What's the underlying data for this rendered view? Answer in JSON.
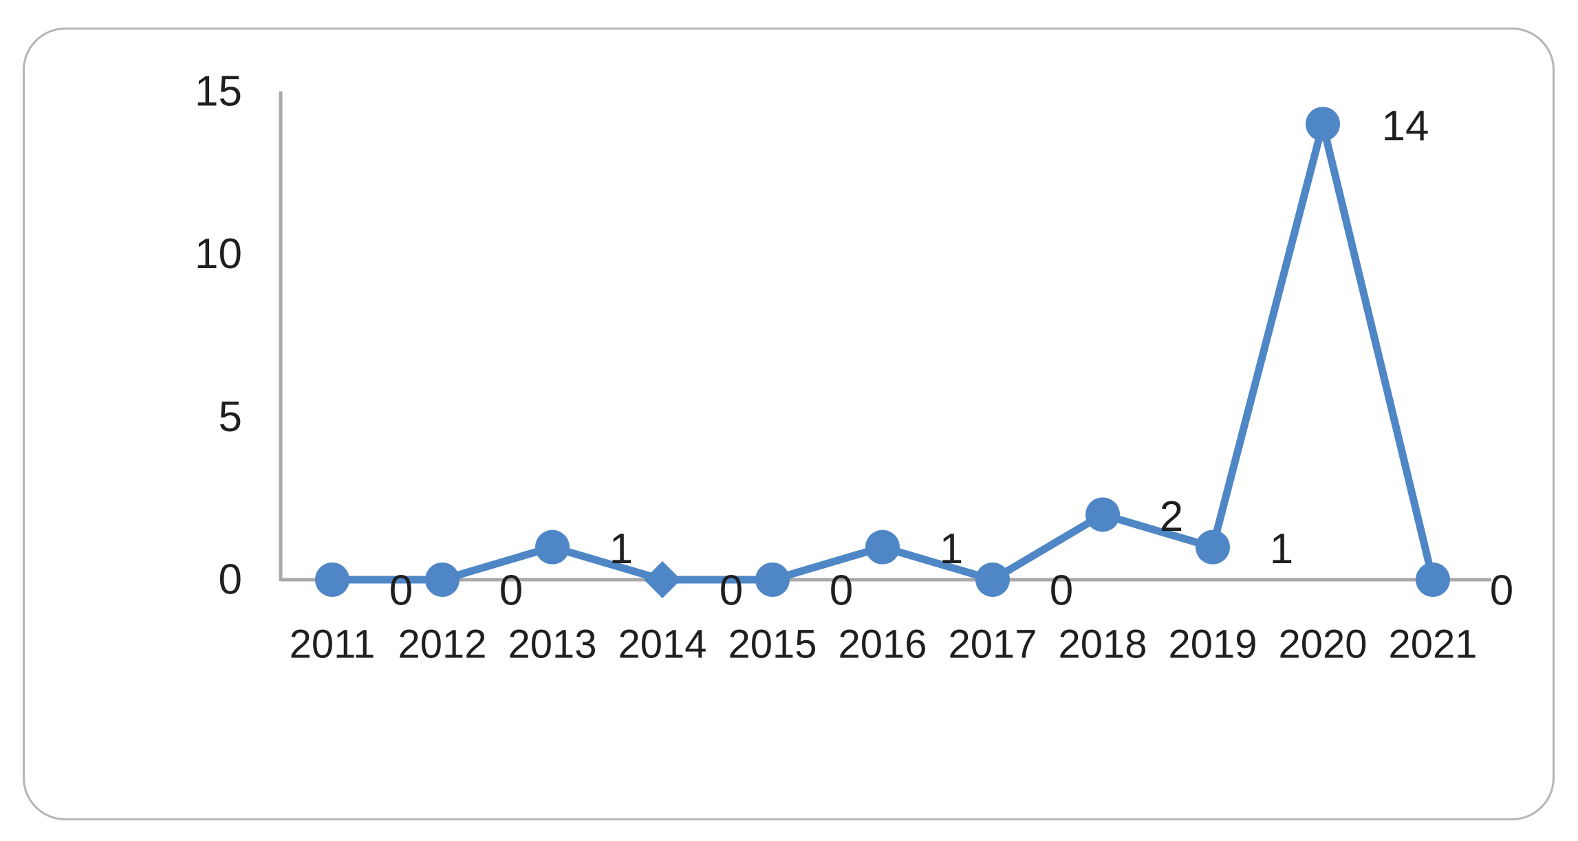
{
  "chart_data": {
    "type": "line",
    "title": "",
    "categories": [
      "2011",
      "2012",
      "2013",
      "2014",
      "2015",
      "2016",
      "2017",
      "2018",
      "2019",
      "2020",
      "2021"
    ],
    "series": [
      {
        "name": "",
        "values": [
          0,
          0,
          1,
          0,
          0,
          1,
          0,
          2,
          1,
          14,
          0
        ],
        "data_labels": [
          "0",
          "0",
          "1",
          "0",
          "0",
          "1",
          "0",
          "2",
          "1",
          "14",
          "0"
        ],
        "marker_shapes": [
          "circle",
          "circle",
          "circle",
          "diamond",
          "circle",
          "circle",
          "circle",
          "circle",
          "circle",
          "circle",
          "circle"
        ]
      }
    ],
    "xlabel": "",
    "ylabel": "",
    "ylim": [
      0,
      15
    ],
    "y_ticks": [
      0,
      5,
      10,
      15
    ],
    "y_tick_labels": [
      "0",
      "5",
      "10",
      "15"
    ],
    "grid": "off",
    "legend": "none",
    "line_color": "#4E86C6",
    "marker_color": "#4E86C6",
    "axis_color": "#A9A9A9",
    "label_color": "#1F1F1F",
    "frame_border_color": "#B5B5B5"
  }
}
